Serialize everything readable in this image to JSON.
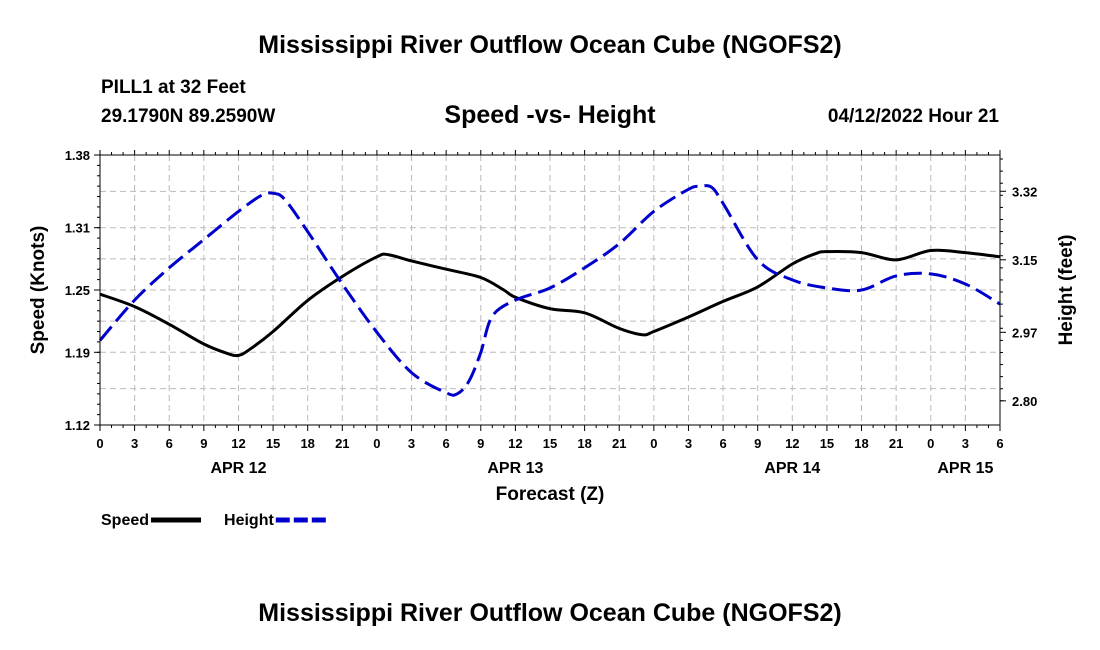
{
  "page": {
    "top_title": "Mississippi River Outflow Ocean Cube (NGOFS2)",
    "bottom_title": "Mississippi River Outflow Ocean Cube (NGOFS2)",
    "station_name": "PILL1 at 32 Feet",
    "station_coords": "29.1790N  89.2590W",
    "date": "04/12/2022 Hour 21"
  },
  "colors": {
    "speed": "#000000",
    "height": "#0000cc",
    "grid": "#bbbbbb"
  },
  "chart_data": {
    "type": "line",
    "title": "Speed -vs- Height",
    "xlabel": "Forecast (Z)",
    "ylabel": "Speed (Knots)",
    "y2label": "Height (feet)",
    "xlim": [
      0,
      78
    ],
    "ylim": [
      1.12,
      1.38
    ],
    "y2lim": [
      2.74,
      3.41
    ],
    "x_ticks": [
      0,
      3,
      6,
      9,
      12,
      15,
      18,
      21,
      24,
      27,
      30,
      33,
      36,
      39,
      42,
      45,
      48,
      51,
      54,
      57,
      60,
      63,
      66,
      69,
      72,
      75,
      78
    ],
    "x_tick_labels": [
      "0",
      "3",
      "6",
      "9",
      "12",
      "15",
      "18",
      "21",
      "0",
      "3",
      "6",
      "9",
      "12",
      "15",
      "18",
      "21",
      "0",
      "3",
      "6",
      "9",
      "12",
      "15",
      "18",
      "21",
      "0",
      "3",
      "6"
    ],
    "date_labels": [
      {
        "x": 12,
        "label": "APR 12"
      },
      {
        "x": 36,
        "label": "APR 13"
      },
      {
        "x": 60,
        "label": "APR 14"
      },
      {
        "x": 75,
        "label": "APR 15"
      }
    ],
    "y_ticks": [
      1.12,
      1.19,
      1.25,
      1.31,
      1.38
    ],
    "y_tick_labels": [
      "1.12",
      "1.19",
      "1.25",
      "1.31",
      "1.38"
    ],
    "y2_ticks": [
      2.8,
      2.97,
      3.15,
      3.32
    ],
    "y2_tick_labels": [
      "2.80",
      "2.97",
      "3.15",
      "3.32"
    ],
    "series": [
      {
        "name": "Speed",
        "axis": "left",
        "style": "solid",
        "x": [
          0,
          3,
          6,
          9,
          11,
          12,
          13,
          15,
          18,
          21,
          24,
          25,
          27,
          30,
          33,
          35,
          36,
          39,
          42,
          45,
          47,
          48,
          51,
          54,
          57,
          60,
          62,
          63,
          66,
          69,
          72,
          75,
          78
        ],
        "values": [
          1.246,
          1.234,
          1.217,
          1.198,
          1.189,
          1.187,
          1.193,
          1.21,
          1.24,
          1.263,
          1.282,
          1.284,
          1.278,
          1.27,
          1.262,
          1.25,
          1.243,
          1.232,
          1.228,
          1.213,
          1.207,
          1.21,
          1.224,
          1.239,
          1.253,
          1.275,
          1.285,
          1.287,
          1.286,
          1.279,
          1.288,
          1.286,
          1.282
        ]
      },
      {
        "name": "Height",
        "axis": "right",
        "style": "dashed",
        "x": [
          0,
          3,
          6,
          9,
          12,
          14,
          15,
          16,
          18,
          21,
          24,
          27,
          30,
          31,
          32,
          33,
          34,
          36,
          39,
          42,
          45,
          48,
          51,
          52,
          53,
          54,
          57,
          60,
          63,
          66,
          69,
          72,
          75,
          78
        ],
        "values": [
          2.95,
          3.05,
          3.13,
          3.2,
          3.27,
          3.31,
          3.315,
          3.3,
          3.22,
          3.09,
          2.97,
          2.87,
          2.82,
          2.818,
          2.85,
          2.92,
          3.01,
          3.05,
          3.08,
          3.13,
          3.19,
          3.27,
          3.325,
          3.332,
          3.33,
          3.29,
          3.15,
          3.1,
          3.08,
          3.075,
          3.11,
          3.115,
          3.09,
          3.04
        ]
      }
    ],
    "legend": [
      {
        "label": "Speed",
        "series": "Speed"
      },
      {
        "label": "Height",
        "series": "Height"
      }
    ]
  }
}
